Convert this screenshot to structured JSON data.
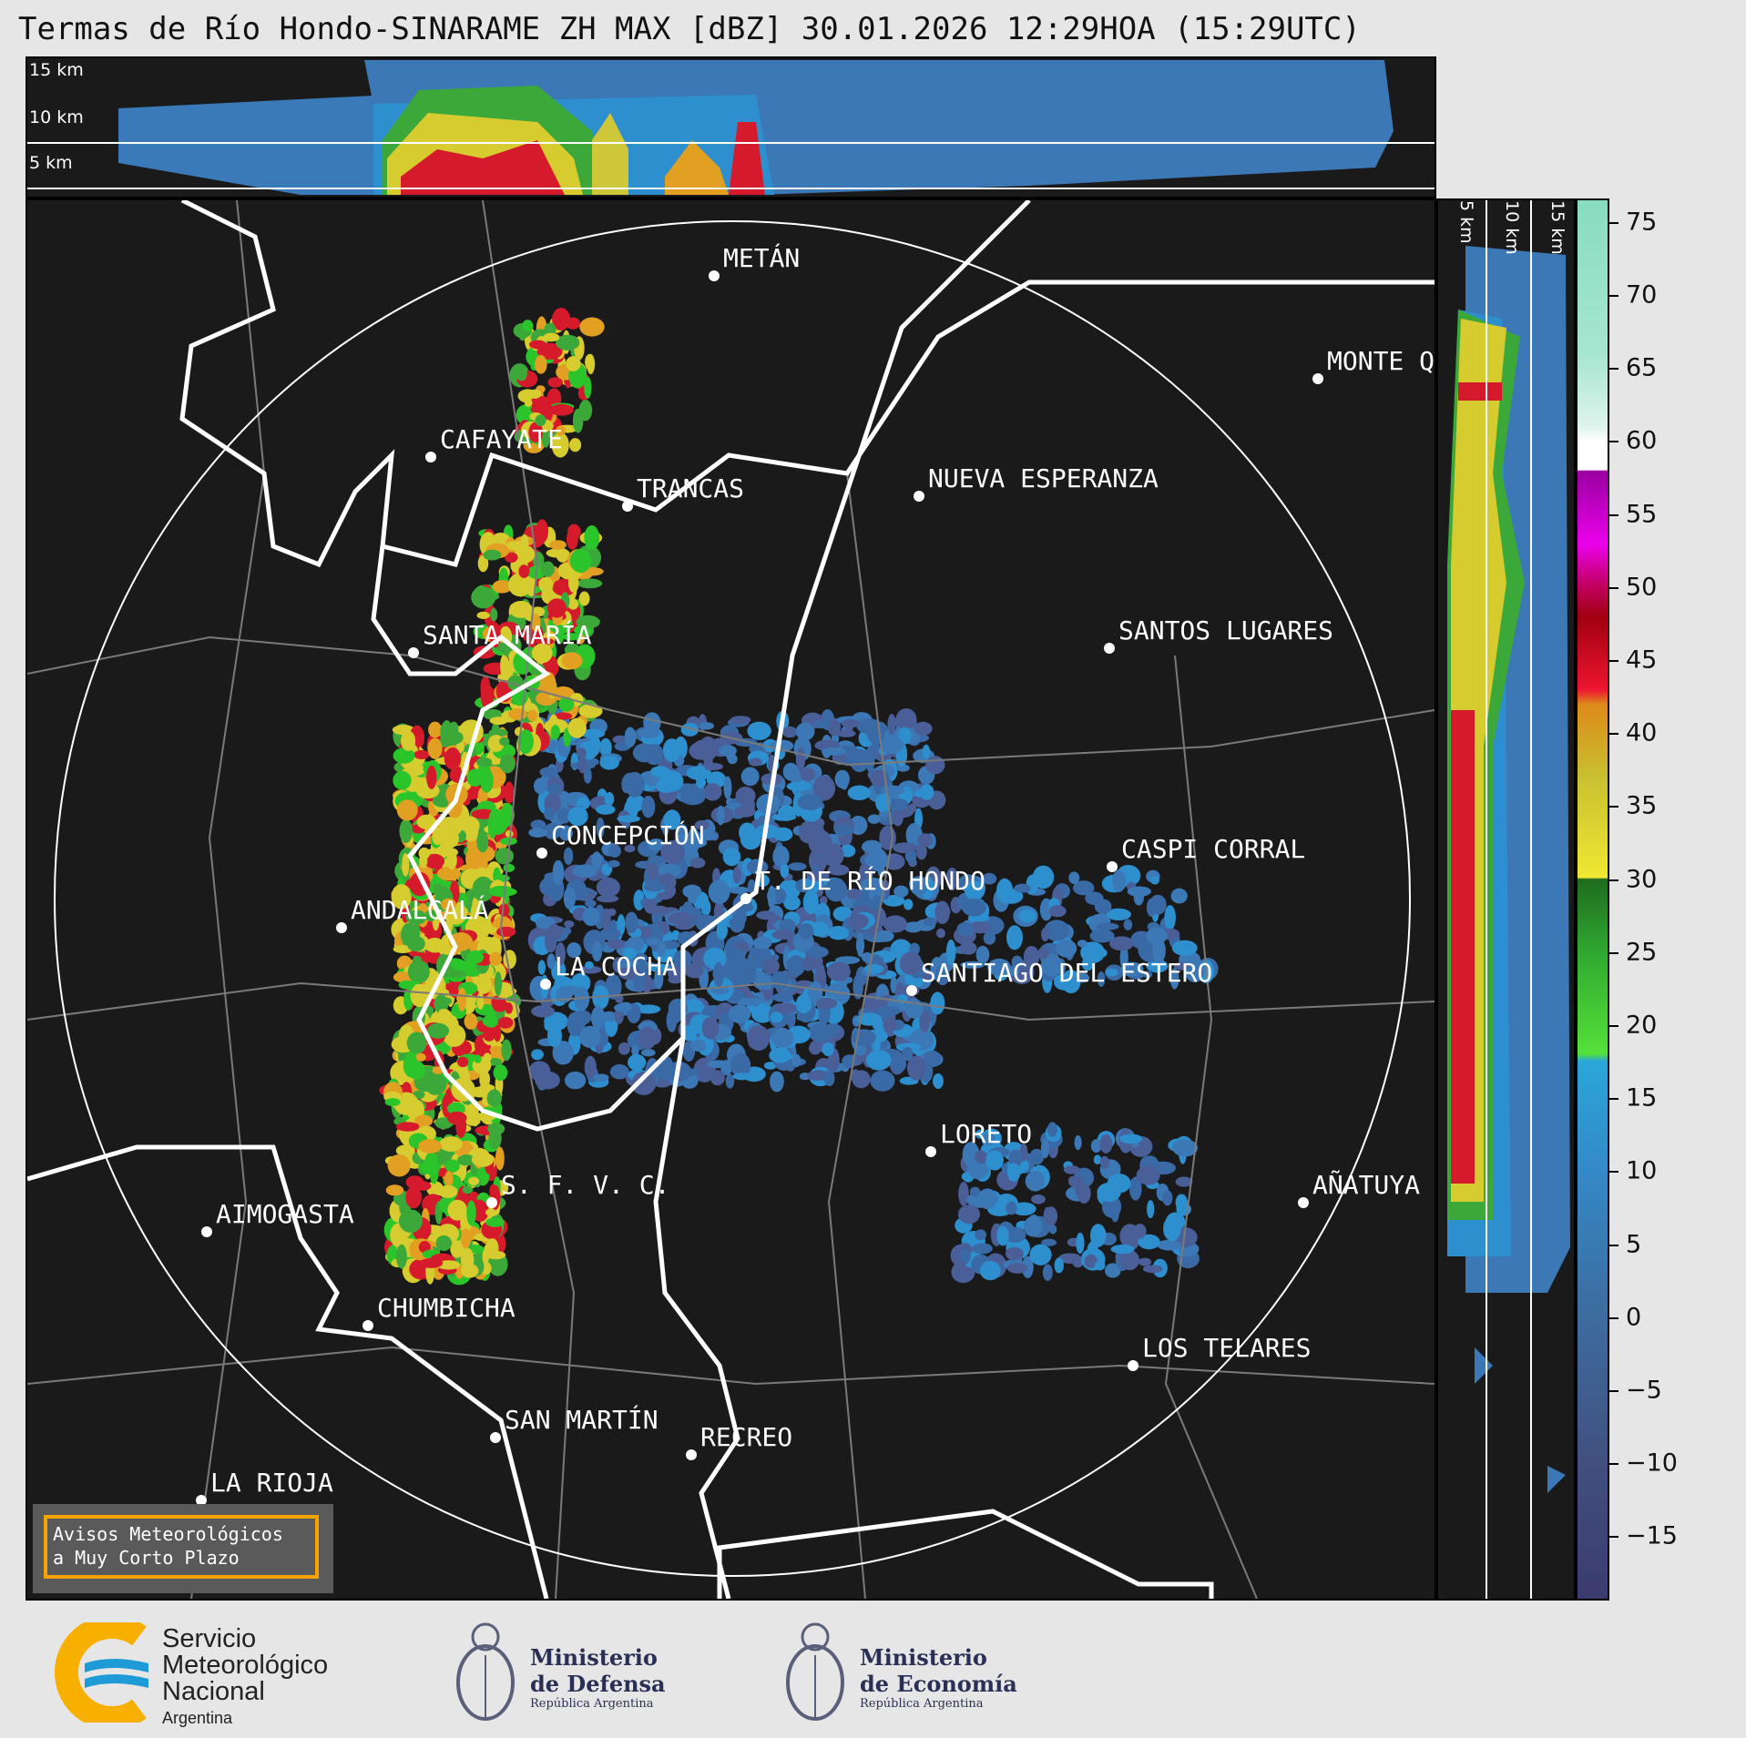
{
  "title": "Termas de Río Hondo-SINARAME ZH MAX [dBZ] 30.01.2026 12:29HOA (15:29UTC)",
  "height_labels": {
    "h15": "15 km",
    "h10": "10 km",
    "h5": "5 km"
  },
  "cities": [
    {
      "name": "METÁN"
    },
    {
      "name": "MONTE Q"
    },
    {
      "name": "CAFAYATE"
    },
    {
      "name": "TRANCAS"
    },
    {
      "name": "NUEVA ESPERANZA"
    },
    {
      "name": "SANTA MARÍA"
    },
    {
      "name": "SANTOS LUGARES"
    },
    {
      "name": "CONCEPCIÓN"
    },
    {
      "name": "T. DE RÍO HONDO"
    },
    {
      "name": "CASPI CORRAL"
    },
    {
      "name": "ANDALGALÁ"
    },
    {
      "name": "LA COCHA"
    },
    {
      "name": "SANTIAGO DEL ESTERO"
    },
    {
      "name": "LORETO"
    },
    {
      "name": "AÑATUYA"
    },
    {
      "name": "S. F. V. C."
    },
    {
      "name": "AIMOGASTA"
    },
    {
      "name": "CHUMBICHA"
    },
    {
      "name": "LOS TELARES"
    },
    {
      "name": "SAN MARTÍN"
    },
    {
      "name": "RECREO"
    },
    {
      "name": "LA RIOJA"
    }
  ],
  "colorbar": {
    "unit": "dBZ",
    "ticks": [
      "75",
      "70",
      "65",
      "60",
      "55",
      "50",
      "45",
      "40",
      "35",
      "30",
      "25",
      "20",
      "15",
      "10",
      "5",
      "0",
      "−5",
      "−10",
      "−15"
    ],
    "tick_values": [
      75,
      70,
      65,
      60,
      55,
      50,
      45,
      40,
      35,
      30,
      25,
      20,
      15,
      10,
      5,
      0,
      -5,
      -10,
      -15
    ],
    "range": [
      -19.4,
      76.6
    ]
  },
  "avisos": {
    "line1": "Avisos Meteorológicos",
    "line2": "a Muy Corto Plazo"
  },
  "logos": {
    "smn": {
      "l1": "Servicio",
      "l2": "Meteorológico",
      "l3": "Nacional",
      "l4": "Argentina"
    },
    "defensa": {
      "l1": "Ministerio",
      "l2": "de Defensa",
      "l3": "República Argentina"
    },
    "economia": {
      "l1": "Ministerio",
      "l2": "de Economía",
      "l3": "República Argentina"
    }
  },
  "colors": {
    "background": "#e6e6e6",
    "map_bg": "#1a1a1a",
    "avisos_border": "#f5a300",
    "smn_yellow": "#f8b000",
    "smn_blue": "#1e9ad6"
  }
}
